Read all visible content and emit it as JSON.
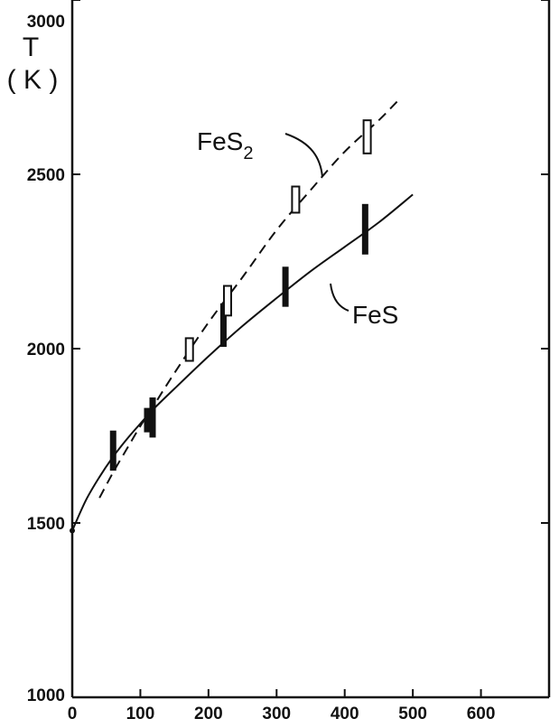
{
  "chart_data": {
    "type": "scatter",
    "title": "",
    "xlabel": "",
    "ylabel": "T",
    "ylabel_unit": "( K )",
    "xlim": [
      0,
      700
    ],
    "ylim": [
      1000,
      3000
    ],
    "x_ticks": [
      "0",
      "100",
      "200",
      "300",
      "400",
      "500",
      "600"
    ],
    "x_tick_values": [
      0,
      100,
      200,
      300,
      400,
      500,
      600
    ],
    "y_ticks": [
      "1000",
      "1500",
      "2000",
      "2500",
      "3000"
    ],
    "y_tick_values": [
      1000,
      1500,
      2000,
      2500,
      3000
    ],
    "grid": false,
    "series": [
      {
        "name": "FeS",
        "label_main": "FeS",
        "label_sub": "",
        "style": "solid",
        "marker": "filled-bar",
        "points": [
          {
            "x": 60,
            "y_low": 1650,
            "y_high": 1765
          },
          {
            "x": 110,
            "y_low": 1760,
            "y_high": 1830
          },
          {
            "x": 118,
            "y_low": 1745,
            "y_high": 1860
          },
          {
            "x": 222,
            "y_low": 2005,
            "y_high": 2130
          },
          {
            "x": 313,
            "y_low": 2120,
            "y_high": 2235
          },
          {
            "x": 430,
            "y_low": 2270,
            "y_high": 2415
          }
        ],
        "curve": [
          [
            0,
            1478
          ],
          [
            20,
            1565
          ],
          [
            40,
            1632
          ],
          [
            60,
            1690
          ],
          [
            80,
            1740
          ],
          [
            100,
            1785
          ],
          [
            120,
            1828
          ],
          [
            150,
            1885
          ],
          [
            200,
            1978
          ],
          [
            250,
            2065
          ],
          [
            300,
            2145
          ],
          [
            350,
            2222
          ],
          [
            400,
            2292
          ],
          [
            450,
            2362
          ],
          [
            500,
            2442
          ]
        ]
      },
      {
        "name": "FeS2",
        "label_main": "FeS",
        "label_sub": "2",
        "style": "dashed",
        "marker": "open-bar",
        "points": [
          {
            "x": 172,
            "y_low": 1965,
            "y_high": 2030
          },
          {
            "x": 228,
            "y_low": 2095,
            "y_high": 2180
          },
          {
            "x": 328,
            "y_low": 2390,
            "y_high": 2465
          },
          {
            "x": 433,
            "y_low": 2560,
            "y_high": 2655
          }
        ],
        "curve": [
          [
            40,
            1572
          ],
          [
            60,
            1645
          ],
          [
            80,
            1712
          ],
          [
            100,
            1778
          ],
          [
            120,
            1838
          ],
          [
            150,
            1930
          ],
          [
            200,
            2075
          ],
          [
            250,
            2205
          ],
          [
            300,
            2340
          ],
          [
            350,
            2455
          ],
          [
            400,
            2565
          ],
          [
            450,
            2655
          ],
          [
            480,
            2715
          ]
        ]
      }
    ]
  }
}
